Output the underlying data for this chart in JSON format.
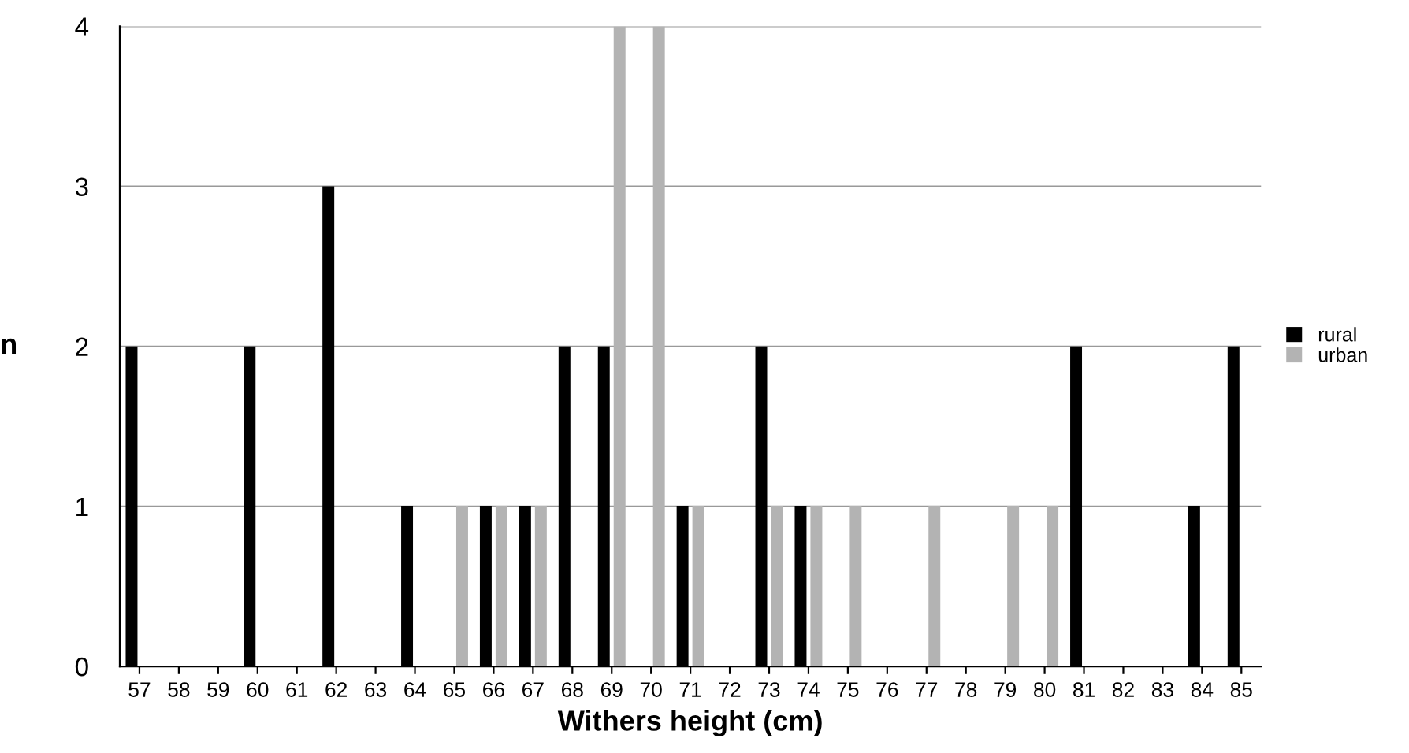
{
  "chart_data": {
    "type": "bar",
    "xlabel": "Withers height (cm)",
    "ylabel": "n",
    "categories": [
      "57",
      "58",
      "59",
      "60",
      "61",
      "62",
      "63",
      "64",
      "65",
      "66",
      "67",
      "68",
      "69",
      "70",
      "71",
      "72",
      "73",
      "74",
      "75",
      "76",
      "77",
      "78",
      "79",
      "80",
      "81",
      "82",
      "83",
      "84",
      "85"
    ],
    "series": [
      {
        "name": "rural",
        "color": "#000000",
        "values": [
          2,
          0,
          0,
          2,
          0,
          3,
          0,
          1,
          0,
          1,
          1,
          2,
          2,
          0,
          1,
          0,
          2,
          1,
          0,
          0,
          0,
          0,
          0,
          0,
          2,
          0,
          0,
          1,
          2
        ]
      },
      {
        "name": "urban",
        "color": "#b3b3b3",
        "values": [
          0,
          0,
          0,
          0,
          0,
          0,
          0,
          0,
          1,
          1,
          1,
          0,
          4,
          4,
          1,
          0,
          1,
          1,
          1,
          0,
          1,
          0,
          1,
          1,
          0,
          0,
          0,
          0,
          0
        ]
      }
    ],
    "ylim": [
      0,
      4
    ],
    "yticks": [
      0,
      1,
      2,
      3,
      4
    ],
    "grid": "y",
    "legend": "right"
  }
}
